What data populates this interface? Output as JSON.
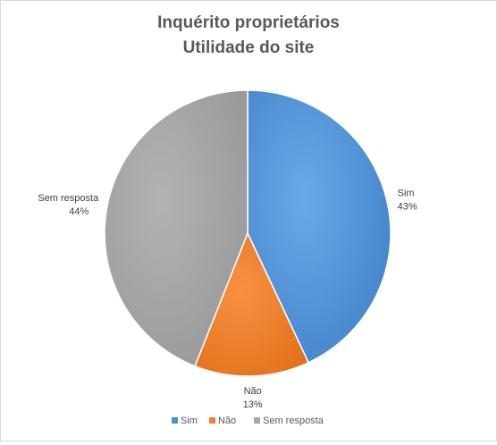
{
  "chart_data": {
    "type": "pie",
    "title": "Inquérito proprietários",
    "subtitle": "Utilidade do site",
    "slices": [
      {
        "label": "Sim",
        "value": 43,
        "value_label": "43%",
        "color": "#4a8fd6"
      },
      {
        "label": "Não",
        "value": 13,
        "value_label": "13%",
        "color": "#f07f2a"
      },
      {
        "label": "Sem resposta",
        "value": 44,
        "value_label": "44%",
        "color": "#a6a6a6"
      }
    ],
    "legend": {
      "placement": "bottom",
      "items": [
        "Sim",
        "Não",
        "Sem resposta"
      ]
    },
    "data_labels": "outside"
  }
}
